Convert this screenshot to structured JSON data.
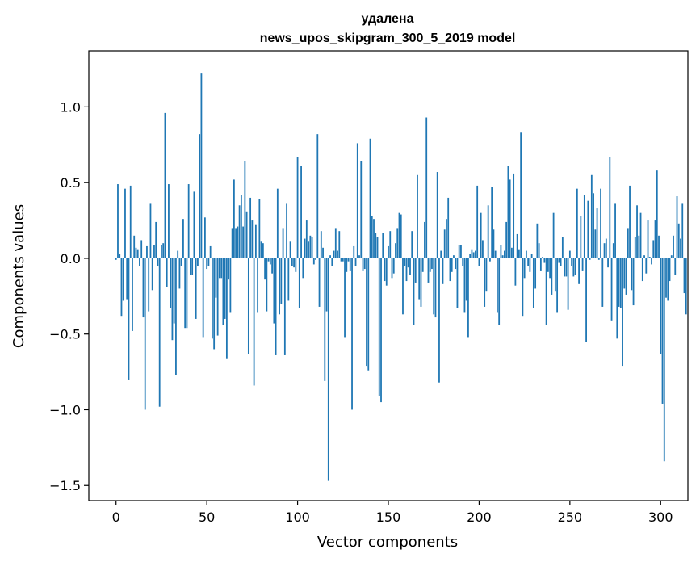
{
  "chart_data": {
    "type": "bar",
    "title": "удалена",
    "subtitle": "news_upos_skipgram_300_5_2019 model",
    "xlabel": "Vector components",
    "ylabel": "Components values",
    "xlim": [
      -15,
      315
    ],
    "ylim": [
      -1.6,
      1.37
    ],
    "xticks": [
      0,
      50,
      100,
      150,
      200,
      250,
      300
    ],
    "xtick_labels": [
      "0",
      "50",
      "100",
      "150",
      "200",
      "250",
      "300"
    ],
    "yticks": [
      -1.5,
      -1.0,
      -0.5,
      0.0,
      0.5,
      1.0
    ],
    "ytick_labels": [
      "−1.5",
      "−1.0",
      "−0.5",
      "0.0",
      "0.5",
      "1.0"
    ],
    "grid": false,
    "bar_color": "#1f77b4",
    "x_start": 0,
    "values": [
      -0.01,
      0.49,
      0.03,
      -0.38,
      -0.28,
      0.46,
      -0.27,
      -0.8,
      0.48,
      -0.48,
      0.15,
      0.07,
      0.06,
      -0.05,
      0.12,
      -0.39,
      -1.0,
      0.08,
      -0.35,
      0.36,
      -0.21,
      0.09,
      0.24,
      -0.05,
      -0.98,
      0.09,
      0.1,
      0.96,
      -0.19,
      0.49,
      -0.33,
      -0.54,
      -0.43,
      -0.77,
      0.05,
      -0.2,
      -0.05,
      0.26,
      -0.46,
      -0.46,
      0.49,
      -0.11,
      -0.11,
      0.44,
      -0.4,
      -0.05,
      0.82,
      1.22,
      -0.52,
      0.27,
      -0.07,
      -0.05,
      0.08,
      -0.53,
      -0.6,
      -0.26,
      -0.51,
      -0.13,
      -0.13,
      -0.44,
      -0.4,
      -0.66,
      -0.14,
      -0.36,
      0.2,
      0.52,
      0.2,
      0.21,
      0.35,
      0.42,
      0.21,
      0.64,
      0.31,
      -0.63,
      0.4,
      0.25,
      -0.84,
      0.22,
      -0.36,
      0.39,
      0.11,
      0.1,
      -0.14,
      -0.35,
      -0.02,
      -0.04,
      -0.1,
      -0.43,
      -0.64,
      0.46,
      -0.37,
      -0.3,
      0.2,
      -0.64,
      0.36,
      -0.28,
      0.11,
      -0.05,
      -0.06,
      -0.09,
      0.67,
      -0.33,
      0.61,
      -0.13,
      0.13,
      0.25,
      0.11,
      0.15,
      0.14,
      -0.04,
      -0.01,
      0.82,
      -0.32,
      0.18,
      0.07,
      -0.81,
      -0.35,
      -1.47,
      0.02,
      -0.05,
      0.05,
      0.2,
      0.05,
      0.18,
      -0.02,
      -0.02,
      -0.52,
      -0.09,
      -0.02,
      -0.08,
      -1.0,
      0.08,
      -0.05,
      0.76,
      0.02,
      0.64,
      -0.08,
      -0.07,
      -0.71,
      -0.74,
      0.79,
      0.28,
      0.26,
      0.17,
      0.14,
      -0.91,
      -0.95,
      0.17,
      -0.15,
      -0.18,
      0.08,
      0.18,
      -0.13,
      -0.1,
      0.1,
      0.2,
      0.3,
      0.29,
      -0.37,
      -0.05,
      -0.15,
      -0.06,
      -0.11,
      0.18,
      -0.44,
      -0.16,
      0.55,
      -0.27,
      -0.32,
      -0.09,
      0.24,
      0.93,
      -0.16,
      -0.09,
      -0.07,
      -0.37,
      -0.39,
      0.57,
      -0.82,
      0.05,
      -0.17,
      0.19,
      0.26,
      0.4,
      -0.15,
      -0.09,
      0.02,
      -0.07,
      -0.33,
      0.09,
      0.09,
      -0.05,
      -0.36,
      -0.28,
      -0.52,
      0.03,
      0.06,
      0.04,
      0.05,
      0.48,
      -0.05,
      0.3,
      0.12,
      -0.32,
      -0.22,
      0.35,
      -0.02,
      0.47,
      0.19,
      0.05,
      -0.36,
      -0.44,
      0.09,
      0.02,
      0.05,
      0.24,
      0.61,
      0.52,
      0.07,
      0.56,
      -0.18,
      0.16,
      0.06,
      0.83,
      -0.38,
      -0.13,
      0.05,
      -0.05,
      -0.09,
      0.03,
      -0.33,
      -0.2,
      0.23,
      0.1,
      -0.08,
      0.01,
      -0.03,
      -0.44,
      -0.09,
      -0.13,
      -0.24,
      0.3,
      -0.22,
      -0.36,
      -0.03,
      -0.05,
      0.14,
      -0.12,
      -0.12,
      -0.34,
      0.05,
      -0.05,
      -0.12,
      -0.11,
      0.46,
      -0.17,
      0.28,
      -0.08,
      0.42,
      -0.55,
      0.38,
      -0.01,
      0.55,
      0.43,
      0.19,
      0.33,
      -0.01,
      0.46,
      -0.32,
      0.1,
      0.13,
      -0.06,
      0.67,
      -0.41,
      0.1,
      0.36,
      -0.53,
      -0.32,
      -0.33,
      -0.71,
      -0.2,
      -0.24,
      0.2,
      0.48,
      -0.21,
      -0.31,
      0.14,
      0.35,
      0.15,
      0.3,
      -0.15,
      0.02,
      -0.1,
      0.25,
      0.01,
      -0.04,
      0.12,
      0.25,
      0.58,
      0.15,
      -0.63,
      -0.96,
      -1.34,
      -0.26,
      -0.28,
      -0.15,
      0.02,
      0.15,
      -0.11,
      0.41,
      0.23,
      0.13,
      0.36,
      -0.23,
      -0.37
    ]
  }
}
